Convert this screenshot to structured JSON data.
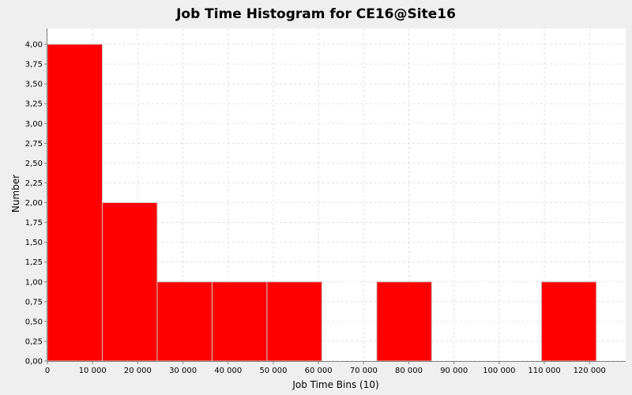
{
  "chart_data": {
    "type": "bar",
    "title": "Job Time Histogram for CE16@Site16",
    "xlabel": "Job Time Bins (10)",
    "ylabel": "Number",
    "xlim": [
      0,
      128000
    ],
    "ylim": [
      0,
      4.2
    ],
    "x_ticks": [
      0,
      10000,
      20000,
      30000,
      40000,
      50000,
      60000,
      70000,
      80000,
      90000,
      100000,
      110000,
      120000
    ],
    "x_tick_labels": [
      "0",
      "10 000",
      "20 000",
      "30 000",
      "40 000",
      "50 000",
      "60 000",
      "70 000",
      "80 000",
      "90 000",
      "100 000",
      "110 000",
      "120 000"
    ],
    "y_ticks": [
      0,
      0.25,
      0.5,
      0.75,
      1,
      1.25,
      1.5,
      1.75,
      2,
      2.25,
      2.5,
      2.75,
      3,
      3.25,
      3.5,
      3.75,
      4
    ],
    "y_tick_labels": [
      "0,00",
      "0,25",
      "0,50",
      "0,75",
      "1,00",
      "1,25",
      "1,50",
      "1,75",
      "2,00",
      "2,25",
      "2,50",
      "2,75",
      "3,00",
      "3,25",
      "3,50",
      "3,75",
      "4,00"
    ],
    "bins": [
      {
        "start": 0,
        "end": 12150,
        "value": 4
      },
      {
        "start": 12150,
        "end": 24300,
        "value": 2
      },
      {
        "start": 24300,
        "end": 36450,
        "value": 1
      },
      {
        "start": 36450,
        "end": 48600,
        "value": 1
      },
      {
        "start": 48600,
        "end": 60750,
        "value": 1
      },
      {
        "start": 60750,
        "end": 72900,
        "value": 0
      },
      {
        "start": 72900,
        "end": 85050,
        "value": 1
      },
      {
        "start": 85050,
        "end": 97200,
        "value": 0
      },
      {
        "start": 97200,
        "end": 109350,
        "value": 0
      },
      {
        "start": 109350,
        "end": 121500,
        "value": 1
      }
    ],
    "grid": true,
    "legend": "none",
    "colors": {
      "bar": "#ff0000",
      "bar_edge": "#c8c8c8",
      "plot_bg": "#ffffff",
      "page_bg": "#efefef",
      "grid": "#d8d8d8"
    }
  }
}
